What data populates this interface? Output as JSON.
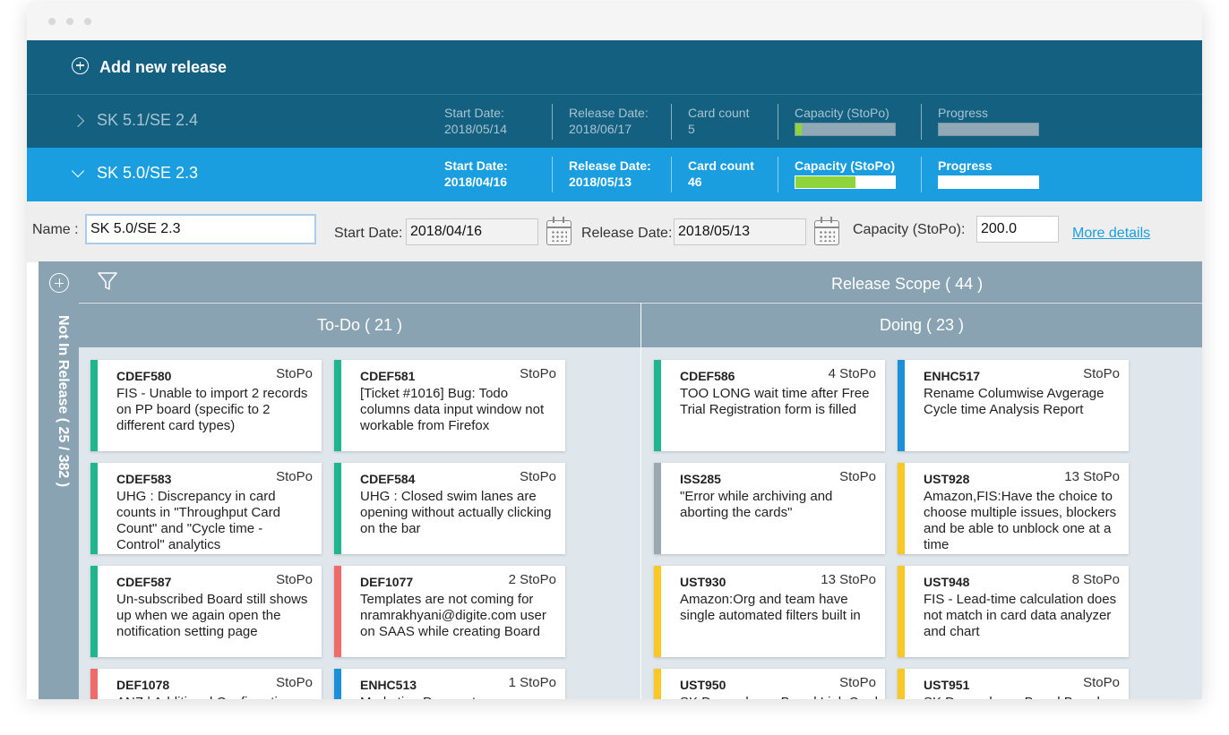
{
  "add_release": {
    "label": "Add new release",
    "icon": "plus-circle-icon"
  },
  "releases": [
    {
      "name": "SK 5.1/SE 2.4",
      "start_label": "Start Date:",
      "start_value": "2018/05/14",
      "release_label": "Release Date:",
      "release_value": "2018/06/17",
      "count_label": "Card count",
      "count_value": "5",
      "capacity_label": "Capacity (StoPo)",
      "capacity_fill": 0.06,
      "progress_label": "Progress",
      "progress_fill": 0.0
    },
    {
      "name": "SK 5.0/SE 2.3",
      "start_label": "Start Date:",
      "start_value": "2018/04/16",
      "release_label": "Release Date:",
      "release_value": "2018/05/13",
      "count_label": "Card count",
      "count_value": "46",
      "capacity_label": "Capacity (StoPo)",
      "capacity_fill": 0.6,
      "progress_label": "Progress",
      "progress_fill": 0.0
    }
  ],
  "form": {
    "name_label": "Name :",
    "name_value": "SK 5.0/SE 2.3",
    "start_label": "Start Date:",
    "start_value": "2018/04/16",
    "release_label": "Release Date:",
    "release_value": "2018/05/13",
    "capacity_label": "Capacity (StoPo):",
    "capacity_value": "200.0",
    "more_details": "More details"
  },
  "sidebar": {
    "label": "Not In Release ( 25 / 382 )"
  },
  "scope": {
    "title": "Release Scope ( 44 )"
  },
  "columns": [
    {
      "title": "To-Do ( 21 )"
    },
    {
      "title": "Doing ( 23 )"
    }
  ],
  "colors": {
    "green": "#1fb58f",
    "red": "#ef6b6b",
    "blue": "#1b8fd8",
    "grey": "#9aa8b0",
    "yellow": "#f9c824",
    "header_dark": "#136080",
    "header_active": "#1a9ee0"
  },
  "cards": [
    {
      "id": "CDEF580",
      "points": "StoPo",
      "title": "FIS - Unable to import 2 records on PP board (specific to 2 different card types)",
      "color": "green"
    },
    {
      "id": "CDEF581",
      "points": "StoPo",
      "title": "[Ticket #1016] Bug: Todo columns data input window not workable from Firefox",
      "color": "green"
    },
    {
      "id": "CDEF586",
      "points": "4 StoPo",
      "title": "TOO LONG wait time after Free Trial Registration form is filled",
      "color": "green"
    },
    {
      "id": "ENHC517",
      "points": "StoPo",
      "title": "Rename Columwise Avgerage Cycle time Analysis Report",
      "color": "blue"
    },
    {
      "id": "CDEF583",
      "points": "StoPo",
      "title": "UHG : Discrepancy in card counts in \"Throughput Card Count\" and \"Cycle time - Control\" analytics",
      "color": "green"
    },
    {
      "id": "CDEF584",
      "points": "StoPo",
      "title": "UHG : Closed swim lanes are opening without actually clicking on the bar",
      "color": "green"
    },
    {
      "id": "ISS285",
      "points": "StoPo",
      "title": "\"Error while archiving and aborting the cards\"",
      "color": "grey"
    },
    {
      "id": "UST928",
      "points": "13 StoPo",
      "title": "Amazon,FIS:Have the choice to choose multiple issues, blockers and be able to unblock one at a time",
      "color": "yellow"
    },
    {
      "id": "CDEF587",
      "points": "StoPo",
      "title": "Un-subscribed Board still shows up when we again open the notification setting page",
      "color": "green"
    },
    {
      "id": "DEF1077",
      "points": "2 StoPo",
      "title": "Templates are not coming for nramrakhyani@digite.com user on SAAS while creating Board",
      "color": "red"
    },
    {
      "id": "UST930",
      "points": "13 StoPo",
      "title": "Amazon:Org and team have single automated filters built in",
      "color": "yellow"
    },
    {
      "id": "UST948",
      "points": "8 StoPo",
      "title": "FIS - Lead-time calculation does not match in card data analyzer and chart",
      "color": "yellow"
    },
    {
      "id": "DEF1078",
      "points": "StoPo",
      "title": "ANZ | Additional Confirmation",
      "color": "red"
    },
    {
      "id": "ENHC513",
      "points": "1 StoPo",
      "title": "Marketing:Payment process",
      "color": "blue"
    },
    {
      "id": "UST950",
      "points": "StoPo",
      "title": "SK Dependency Board:Link Card",
      "color": "yellow"
    },
    {
      "id": "UST951",
      "points": "StoPo",
      "title": "SK Dependency Board:Board",
      "color": "yellow"
    }
  ]
}
